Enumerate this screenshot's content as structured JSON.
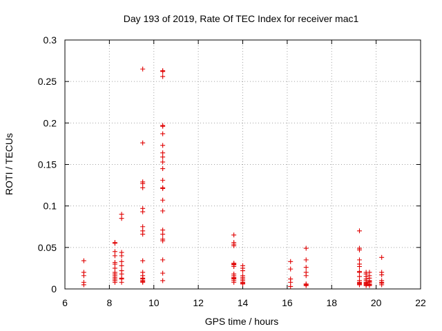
{
  "chart_data": {
    "type": "scatter",
    "title": "Day 193 of 2019, Rate Of TEC Index for receiver mac1",
    "xlabel": "GPS time / hours",
    "ylabel": "ROTI / TECUs",
    "xlim": [
      6,
      22
    ],
    "ylim": [
      0,
      0.3
    ],
    "xticks": [
      6,
      8,
      10,
      12,
      14,
      16,
      18,
      20,
      22
    ],
    "yticks": [
      0,
      0.05,
      0.1,
      0.15,
      0.2,
      0.25,
      0.3
    ],
    "xtick_labels": [
      "6",
      "8",
      "10",
      "12",
      "14",
      "16",
      "18",
      "20",
      "22"
    ],
    "ytick_labels": [
      "0",
      "0.05",
      "0.1",
      "0.15",
      "0.2",
      "0.25",
      "0.3"
    ],
    "grid": true,
    "marker": "+",
    "series": [
      {
        "name": "ROTI",
        "color": "#e00000",
        "points": [
          [
            6.85,
            0.034
          ],
          [
            6.85,
            0.02
          ],
          [
            6.85,
            0.016
          ],
          [
            6.85,
            0.008
          ],
          [
            6.85,
            0.005
          ],
          [
            8.25,
            0.056
          ],
          [
            8.25,
            0.055
          ],
          [
            8.25,
            0.045
          ],
          [
            8.25,
            0.04
          ],
          [
            8.25,
            0.032
          ],
          [
            8.25,
            0.03
          ],
          [
            8.25,
            0.025
          ],
          [
            8.25,
            0.02
          ],
          [
            8.25,
            0.018
          ],
          [
            8.25,
            0.016
          ],
          [
            8.25,
            0.014
          ],
          [
            8.25,
            0.012
          ],
          [
            8.25,
            0.01
          ],
          [
            8.25,
            0.008
          ],
          [
            8.55,
            0.09
          ],
          [
            8.55,
            0.085
          ],
          [
            8.55,
            0.044
          ],
          [
            8.55,
            0.04
          ],
          [
            8.55,
            0.033
          ],
          [
            8.55,
            0.028
          ],
          [
            8.55,
            0.022
          ],
          [
            8.55,
            0.018
          ],
          [
            8.55,
            0.013
          ],
          [
            8.55,
            0.012
          ],
          [
            8.55,
            0.008
          ],
          [
            9.5,
            0.265
          ],
          [
            9.5,
            0.176
          ],
          [
            9.5,
            0.129
          ],
          [
            9.5,
            0.127
          ],
          [
            9.5,
            0.122
          ],
          [
            9.5,
            0.097
          ],
          [
            9.5,
            0.093
          ],
          [
            9.5,
            0.075
          ],
          [
            9.5,
            0.07
          ],
          [
            9.5,
            0.066
          ],
          [
            9.5,
            0.034
          ],
          [
            9.5,
            0.02
          ],
          [
            9.5,
            0.016
          ],
          [
            9.5,
            0.013
          ],
          [
            9.5,
            0.012
          ],
          [
            9.5,
            0.01
          ],
          [
            9.5,
            0.009
          ],
          [
            9.5,
            0.008
          ],
          [
            10.4,
            0.263
          ],
          [
            10.4,
            0.262
          ],
          [
            10.4,
            0.256
          ],
          [
            10.4,
            0.197
          ],
          [
            10.4,
            0.196
          ],
          [
            10.4,
            0.187
          ],
          [
            10.4,
            0.173
          ],
          [
            10.4,
            0.164
          ],
          [
            10.4,
            0.159
          ],
          [
            10.4,
            0.153
          ],
          [
            10.4,
            0.145
          ],
          [
            10.4,
            0.131
          ],
          [
            10.4,
            0.122
          ],
          [
            10.4,
            0.121
          ],
          [
            10.4,
            0.107
          ],
          [
            10.4,
            0.094
          ],
          [
            10.4,
            0.071
          ],
          [
            10.4,
            0.066
          ],
          [
            10.4,
            0.06
          ],
          [
            10.4,
            0.058
          ],
          [
            10.4,
            0.035
          ],
          [
            10.4,
            0.019
          ],
          [
            10.4,
            0.01
          ],
          [
            13.6,
            0.065
          ],
          [
            13.6,
            0.056
          ],
          [
            13.6,
            0.054
          ],
          [
            13.6,
            0.052
          ],
          [
            13.6,
            0.031
          ],
          [
            13.6,
            0.03
          ],
          [
            13.6,
            0.029
          ],
          [
            13.6,
            0.027
          ],
          [
            13.6,
            0.018
          ],
          [
            13.6,
            0.016
          ],
          [
            13.6,
            0.014
          ],
          [
            13.6,
            0.013
          ],
          [
            13.6,
            0.012
          ],
          [
            13.6,
            0.01
          ],
          [
            13.6,
            0.008
          ],
          [
            14.0,
            0.028
          ],
          [
            14.0,
            0.025
          ],
          [
            14.0,
            0.022
          ],
          [
            14.0,
            0.016
          ],
          [
            14.0,
            0.014
          ],
          [
            14.0,
            0.012
          ],
          [
            14.0,
            0.01
          ],
          [
            14.0,
            0.008
          ],
          [
            14.0,
            0.007
          ],
          [
            14.0,
            0.006
          ],
          [
            16.15,
            0.033
          ],
          [
            16.15,
            0.024
          ],
          [
            16.15,
            0.012
          ],
          [
            16.15,
            0.008
          ],
          [
            16.15,
            0.003
          ],
          [
            16.85,
            0.049
          ],
          [
            16.85,
            0.035
          ],
          [
            16.85,
            0.026
          ],
          [
            16.85,
            0.02
          ],
          [
            16.85,
            0.016
          ],
          [
            16.85,
            0.006
          ],
          [
            16.85,
            0.005
          ],
          [
            16.85,
            0.004
          ],
          [
            19.25,
            0.07
          ],
          [
            19.25,
            0.049
          ],
          [
            19.25,
            0.047
          ],
          [
            19.25,
            0.035
          ],
          [
            19.25,
            0.03
          ],
          [
            19.25,
            0.027
          ],
          [
            19.25,
            0.021
          ],
          [
            19.25,
            0.02
          ],
          [
            19.25,
            0.015
          ],
          [
            19.25,
            0.01
          ],
          [
            19.25,
            0.008
          ],
          [
            19.25,
            0.007
          ],
          [
            19.25,
            0.006
          ],
          [
            19.25,
            0.005
          ],
          [
            19.55,
            0.02
          ],
          [
            19.55,
            0.018
          ],
          [
            19.55,
            0.015
          ],
          [
            19.55,
            0.012
          ],
          [
            19.55,
            0.01
          ],
          [
            19.55,
            0.008
          ],
          [
            19.55,
            0.007
          ],
          [
            19.55,
            0.006
          ],
          [
            19.55,
            0.005
          ],
          [
            19.55,
            0.004
          ],
          [
            19.7,
            0.02
          ],
          [
            19.7,
            0.016
          ],
          [
            19.7,
            0.013
          ],
          [
            19.7,
            0.01
          ],
          [
            19.7,
            0.009
          ],
          [
            19.7,
            0.008
          ],
          [
            19.7,
            0.006
          ],
          [
            19.7,
            0.005
          ],
          [
            19.7,
            0.004
          ],
          [
            20.25,
            0.038
          ],
          [
            20.25,
            0.02
          ],
          [
            20.25,
            0.017
          ],
          [
            20.25,
            0.01
          ],
          [
            20.25,
            0.008
          ],
          [
            20.25,
            0.007
          ],
          [
            20.25,
            0.005
          ]
        ]
      }
    ]
  }
}
